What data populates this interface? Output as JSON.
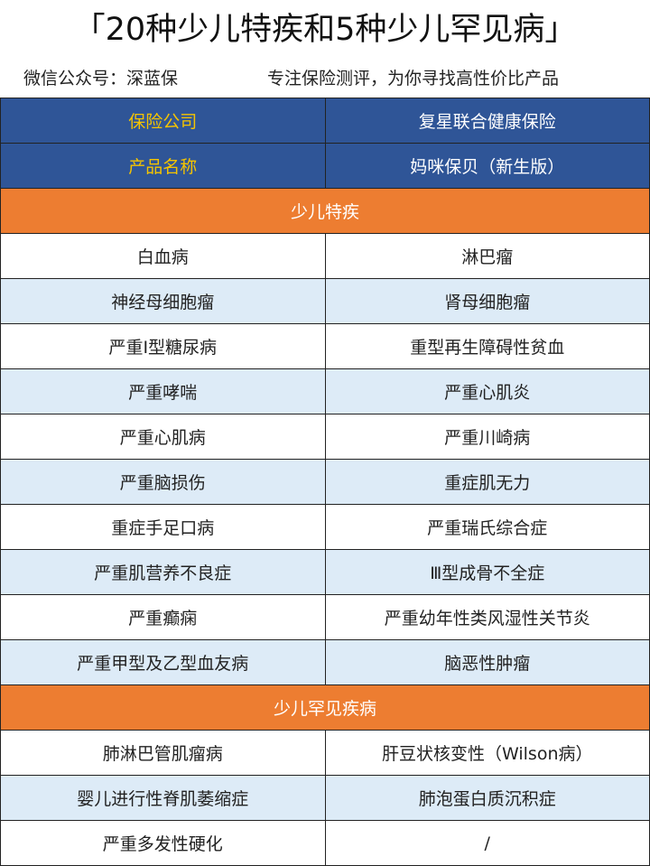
{
  "title": "「20种少儿特疾和5种少儿罕见病」",
  "subtitle": {
    "account": "微信公众号：深蓝保",
    "slogan": "专注保险测评，为你寻找高性价比产品"
  },
  "header": [
    {
      "label": "保险公司",
      "value": "复星联合健康保险"
    },
    {
      "label": "产品名称",
      "value": "妈咪保贝（新生版）"
    }
  ],
  "colors": {
    "header_bg": "#2f5597",
    "header_label": "#f5c400",
    "section_bg": "#ed7d31",
    "alt_row": "#ddebf7"
  },
  "sections": [
    {
      "title": "少儿特疾",
      "rows": [
        [
          "白血病",
          "淋巴瘤"
        ],
        [
          "神经母细胞瘤",
          "肾母细胞瘤"
        ],
        [
          "严重I型糖尿病",
          "重型再生障碍性贫血"
        ],
        [
          "严重哮喘",
          "严重心肌炎"
        ],
        [
          "严重心肌病",
          "严重川崎病"
        ],
        [
          "严重脑损伤",
          "重症肌无力"
        ],
        [
          "重症手足口病",
          "严重瑞氏综合症"
        ],
        [
          "严重肌营养不良症",
          "Ⅲ型成骨不全症"
        ],
        [
          "严重癫痫",
          "严重幼年性类风湿性关节炎"
        ],
        [
          "严重甲型及乙型血友病",
          "脑恶性肿瘤"
        ]
      ]
    },
    {
      "title": "少儿罕见疾病",
      "rows": [
        [
          "肺淋巴管肌瘤病",
          "肝豆状核变性（Wilson病）"
        ],
        [
          "婴儿进行性脊肌萎缩症",
          "肺泡蛋白质沉积症"
        ],
        [
          "严重多发性硬化",
          "/"
        ]
      ]
    }
  ]
}
